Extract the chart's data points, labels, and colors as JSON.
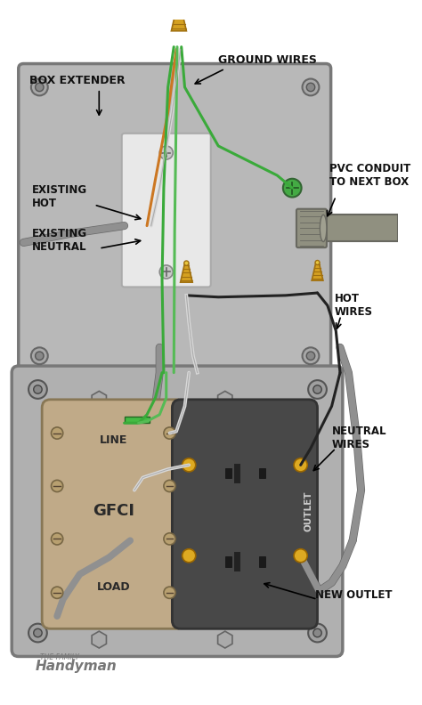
{
  "bg_color": "#ffffff",
  "box_color_top": "#b8b8b8",
  "box_color_bot": "#b0b0b0",
  "box_edge_color": "#787878",
  "inner_box_color": "#e0e0e0",
  "gfci_color": "#c0aa88",
  "outlet_color": "#484848",
  "wire_green1": "#3aaa3a",
  "wire_green2": "#55bb55",
  "wire_orange": "#cc7722",
  "wire_white": "#d8d8d8",
  "wire_gray": "#909090",
  "wire_gray_dark": "#686868",
  "connector_gold": "#d4a020",
  "connector_tip": "#e8c840",
  "connector_dark": "#a07010",
  "pvc_color": "#909080",
  "pvc_dark": "#686860",
  "green_screw": "#44aa44",
  "label_box_extender": "BOX EXTENDER",
  "label_ground_wires": "GROUND WIRES",
  "label_pvc_conduit": "PVC CONDUIT\nTO NEXT BOX",
  "label_existing_hot": "EXISTING\nHOT",
  "label_existing_neutral": "EXISTING\nNEUTRAL",
  "label_hot_wires": "HOT\nWIRES",
  "label_neutral_wires": "NEUTRAL\nWIRES",
  "label_new_outlet": "NEW OUTLET",
  "label_line": "LINE",
  "label_gfci": "GFCI",
  "label_load": "LOAD",
  "label_outlet": "OUTLET",
  "label_color": "#111111",
  "handyman_color": "#777777"
}
